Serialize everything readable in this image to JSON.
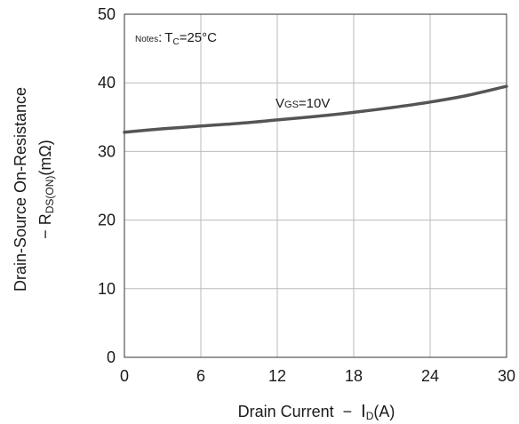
{
  "chart_data": {
    "type": "line",
    "xlabel": {
      "prefix": "Drain Current  −  ",
      "symbol": "I",
      "subscript": "D",
      "suffix": "(A)"
    },
    "ylabel": {
      "line1": "Drain-Source On-Resistance",
      "line2": {
        "prefix": "− R",
        "subscript": "DS(ON)",
        "suffix": "(mΩ)"
      }
    },
    "x_ticks": [
      "0",
      "6",
      "12",
      "18",
      "24",
      "30"
    ],
    "y_ticks": [
      "0",
      "10",
      "20",
      "30",
      "40",
      "50"
    ],
    "xlim": [
      0,
      30
    ],
    "ylim": [
      0,
      50
    ],
    "grid": true,
    "annotation": {
      "notes_label": "Notes",
      "separator": ":",
      "symbol": "T",
      "subscript": "C",
      "value": "=25°C"
    },
    "series": [
      {
        "label": {
          "symbol": "V",
          "subscript": "GS",
          "value": "=10V"
        },
        "color": "#555555",
        "x": [
          0,
          3,
          6,
          9,
          12,
          15,
          18,
          21,
          24,
          27,
          30
        ],
        "y": [
          32.8,
          33.3,
          33.7,
          34.1,
          34.6,
          35.1,
          35.7,
          36.4,
          37.2,
          38.2,
          39.5
        ]
      }
    ]
  }
}
